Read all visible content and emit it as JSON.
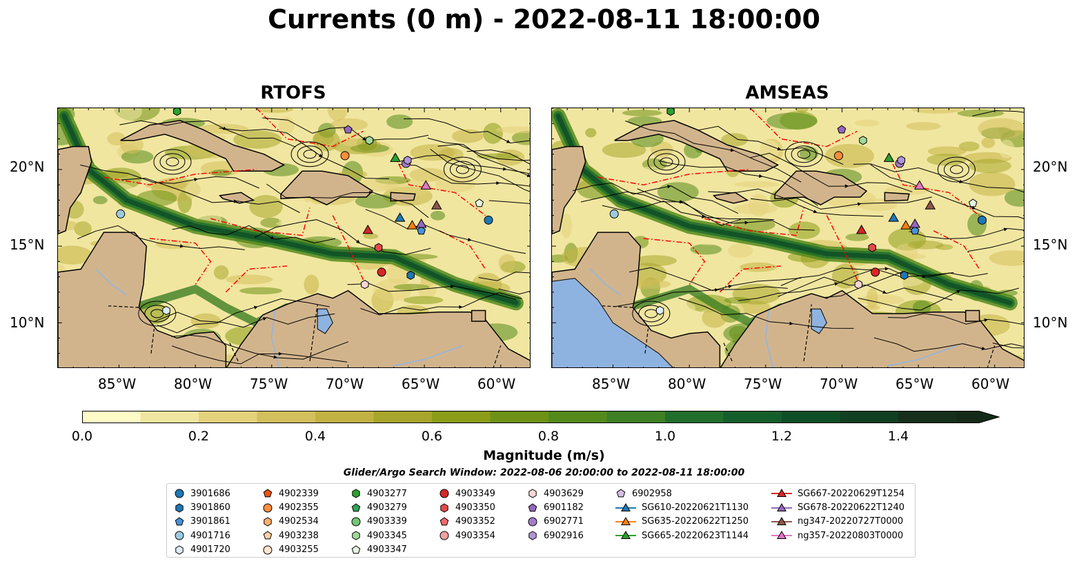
{
  "title": "Currents (0 m) - 2022-08-11 18:00:00",
  "panels": [
    {
      "title": "RTOFS"
    },
    {
      "title": "AMSEAS"
    }
  ],
  "lon_ticks": [
    "85°W",
    "80°W",
    "75°W",
    "70°W",
    "65°W",
    "60°W"
  ],
  "lat_ticks": [
    "20°N",
    "15°N",
    "10°N"
  ],
  "colors": {
    "land": "#d2b48c",
    "water_blue": "#8fb3e0",
    "eez_line": "#ff0000",
    "streamline": "#000000",
    "river": "#9db5d3"
  },
  "colorbar": {
    "label": "Magnitude (m/s)",
    "ticks": [
      "0.0",
      "0.2",
      "0.4",
      "0.6",
      "0.8",
      "1.0",
      "1.2",
      "1.4"
    ],
    "colors": [
      "#fefcc6",
      "#f1e6a0",
      "#e4d27c",
      "#d3bf5c",
      "#c2b244",
      "#a8a52c",
      "#8b9c18",
      "#6e9215",
      "#548a1c",
      "#3e8024",
      "#216e2c",
      "#145e2c",
      "#0e4f27",
      "#113f22",
      "#16301c",
      "#142a18"
    ]
  },
  "search_window": "Glider/Argo Search Window: 2022-08-06 20:00:00 to 2022-08-11 18:00:00",
  "legend": {
    "columns": [
      [
        {
          "label": "3901686",
          "shape": "circle",
          "color": "#1f77b4"
        },
        {
          "label": "3901860",
          "shape": "hexagon",
          "color": "#1f77b4"
        },
        {
          "label": "3901861",
          "shape": "pentagon",
          "color": "#4a90d9"
        },
        {
          "label": "4901716",
          "shape": "circle",
          "color": "#9ecae1"
        },
        {
          "label": "4901720",
          "shape": "hexagon",
          "color": "#deebf7"
        }
      ],
      [
        {
          "label": "4902339",
          "shape": "pentagon",
          "color": "#e6550d"
        },
        {
          "label": "4902355",
          "shape": "circle",
          "color": "#fd8d3c"
        },
        {
          "label": "4902534",
          "shape": "hexagon",
          "color": "#fdae6b"
        },
        {
          "label": "4903238",
          "shape": "pentagon",
          "color": "#fdd0a2"
        },
        {
          "label": "4903255",
          "shape": "circle",
          "color": "#fee6ce"
        }
      ],
      [
        {
          "label": "4903277",
          "shape": "hexagon",
          "color": "#2ca02c"
        },
        {
          "label": "4903279",
          "shape": "pentagon",
          "color": "#31a354"
        },
        {
          "label": "4903339",
          "shape": "circle",
          "color": "#74c476"
        },
        {
          "label": "4903345",
          "shape": "hexagon",
          "color": "#a1d99b"
        },
        {
          "label": "4903347",
          "shape": "pentagon",
          "color": "#e5f5e0"
        }
      ],
      [
        {
          "label": "4903349",
          "shape": "circle",
          "color": "#d62728"
        },
        {
          "label": "4903350",
          "shape": "hexagon",
          "color": "#e34a4a"
        },
        {
          "label": "4903352",
          "shape": "pentagon",
          "color": "#f0696a"
        },
        {
          "label": "4903354",
          "shape": "circle",
          "color": "#f4a0a0"
        }
      ],
      [
        {
          "label": "4903629",
          "shape": "hexagon",
          "color": "#fcd5d5"
        },
        {
          "label": "6901182",
          "shape": "pentagon",
          "color": "#9467bd"
        },
        {
          "label": "6902771",
          "shape": "circle",
          "color": "#a57cc9"
        },
        {
          "label": "6902916",
          "shape": "hexagon",
          "color": "#b194d6"
        }
      ],
      [
        {
          "label": "6902958",
          "shape": "pentagon",
          "color": "#d4bfe8"
        },
        {
          "label": "SG610-20220621T1130",
          "shape": "triangle-line",
          "color": "#1f77b4"
        },
        {
          "label": "SG635-20220622T1250",
          "shape": "triangle-line",
          "color": "#ff7f0e"
        },
        {
          "label": "SG665-20220623T1144",
          "shape": "triangle-line",
          "color": "#2ca02c"
        }
      ],
      [
        {
          "label": "SG667-20220629T1254",
          "shape": "triangle-line",
          "color": "#d62728"
        },
        {
          "label": "SG678-20220622T1240",
          "shape": "triangle-line",
          "color": "#9467bd"
        },
        {
          "label": "ng347-20220727T0000",
          "shape": "triangle-line",
          "color": "#8c564b"
        },
        {
          "label": "ng357-20220803T0000",
          "shape": "triangle-line",
          "color": "#e377c2"
        }
      ]
    ]
  },
  "markers": [
    {
      "lon": -60.8,
      "lat": 16.7,
      "shape": "circle",
      "color": "#1f77b4"
    },
    {
      "lon": -65.9,
      "lat": 13.1,
      "shape": "hexagon",
      "color": "#1f77b4"
    },
    {
      "lon": -65.2,
      "lat": 16.0,
      "shape": "pentagon",
      "color": "#4a90d9"
    },
    {
      "lon": -84.9,
      "lat": 17.1,
      "shape": "circle",
      "color": "#9ecae1"
    },
    {
      "lon": -81.9,
      "lat": 10.8,
      "shape": "hexagon",
      "color": "#deebf7"
    },
    {
      "lon": -70.2,
      "lat": 20.9,
      "shape": "circle",
      "color": "#fd8d3c"
    },
    {
      "lon": -68.6,
      "lat": 21.9,
      "shape": "hexagon",
      "color": "#a1d99b"
    },
    {
      "lon": -70.0,
      "lat": 22.6,
      "shape": "pentagon",
      "color": "#9467bd"
    },
    {
      "lon": -66.2,
      "lat": 20.4,
      "shape": "circle",
      "color": "#a57cc9"
    },
    {
      "lon": -66.1,
      "lat": 20.6,
      "shape": "hexagon",
      "color": "#b194d6"
    },
    {
      "lon": -68.0,
      "lat": 14.9,
      "shape": "hexagon",
      "color": "#e34a4a"
    },
    {
      "lon": -67.8,
      "lat": 13.3,
      "shape": "circle",
      "color": "#d62728"
    },
    {
      "lon": -68.9,
      "lat": 12.5,
      "shape": "hexagon",
      "color": "#fcd5d5"
    },
    {
      "lon": -61.4,
      "lat": 17.8,
      "shape": "pentagon",
      "color": "#e5f5e0"
    },
    {
      "lon": -81.2,
      "lat": 23.8,
      "shape": "hexagon",
      "color": "#2ca02c"
    },
    {
      "lon": -66.9,
      "lat": 20.7,
      "shape": "triangle",
      "color": "#2ca02c"
    },
    {
      "lon": -68.7,
      "lat": 16.0,
      "shape": "triangle",
      "color": "#d62728"
    },
    {
      "lon": -66.6,
      "lat": 16.8,
      "shape": "triangle",
      "color": "#1f77b4"
    },
    {
      "lon": -65.8,
      "lat": 16.3,
      "shape": "triangle",
      "color": "#ff7f0e"
    },
    {
      "lon": -65.2,
      "lat": 16.4,
      "shape": "triangle",
      "color": "#9467bd"
    },
    {
      "lon": -64.2,
      "lat": 17.6,
      "shape": "triangle",
      "color": "#8c564b"
    },
    {
      "lon": -64.9,
      "lat": 18.9,
      "shape": "triangle",
      "color": "#e377c2"
    }
  ]
}
